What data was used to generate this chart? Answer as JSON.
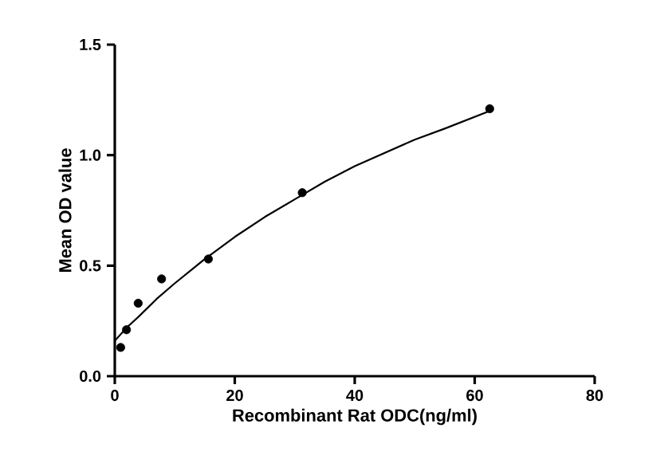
{
  "chart_data": {
    "type": "scatter",
    "xlabel": "Recombinant Rat ODC(ng/ml)",
    "ylabel": "Mean OD value",
    "xlim": [
      0,
      80
    ],
    "xticks": [
      0,
      20,
      40,
      60,
      80
    ],
    "ylim": [
      0,
      1.5
    ],
    "yticks": [
      {
        "value": 0,
        "label": "0.0"
      },
      0.5,
      {
        "value": 1,
        "label": "1.0"
      },
      1.5
    ],
    "grid": false,
    "series": [
      {
        "color": "#000000",
        "marker": "circle",
        "x": [
          0.98,
          1.95,
          3.9,
          7.8,
          15.6,
          31.25,
          62.5
        ],
        "values": [
          0.13,
          0.21,
          0.33,
          0.44,
          0.53,
          0.83,
          1.21
        ]
      },
      {
        "type": "line",
        "color": "#000000",
        "marker": "none",
        "line_style": "solid",
        "x": [
          0,
          1,
          2,
          4,
          7,
          10,
          15,
          20,
          25,
          30,
          35,
          40,
          45,
          50,
          55,
          62.5
        ],
        "values": [
          0.16,
          0.19,
          0.22,
          0.27,
          0.35,
          0.42,
          0.53,
          0.63,
          0.72,
          0.8,
          0.88,
          0.95,
          1.01,
          1.07,
          1.12,
          1.2
        ]
      }
    ]
  }
}
